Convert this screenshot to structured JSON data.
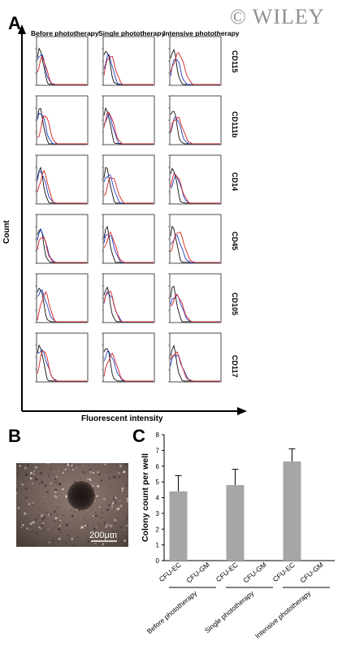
{
  "watermark": "© WILEY",
  "panels": {
    "a": "A",
    "b": "B",
    "c": "C"
  },
  "colors": {
    "red": "#d62020",
    "blue": "#1f3fbf",
    "black": "#111111",
    "bar": "#a6a6a6"
  },
  "micrograph": {
    "scale_bar": "200μm"
  },
  "chart_data": [
    {
      "panel": "A",
      "type": "histogram-grid",
      "columns": [
        "Before phototherapy",
        "Single phototherapy",
        "Intensive phototherapy"
      ],
      "rows": [
        "CD115",
        "CD111b",
        "CD14",
        "CD45",
        "CD105",
        "CD117"
      ],
      "xlabel": "Fluorescent intensity",
      "ylabel": "Count"
    },
    {
      "panel": "C",
      "type": "bar",
      "ylabel": "Colony count per well",
      "ylim": [
        0,
        8
      ],
      "yticks": [
        0,
        1,
        2,
        3,
        4,
        5,
        6,
        7,
        8
      ],
      "categories": [
        "CFU-EC",
        "CFU-GM",
        "CFU-EC",
        "CFU-GM",
        "CFU-EC",
        "CFU-GM"
      ],
      "values": [
        4.4,
        0,
        4.8,
        0,
        6.3,
        0
      ],
      "errors": [
        1.0,
        0,
        1.0,
        0,
        0.8,
        0
      ],
      "groups": [
        "Before phototherapy",
        "Single phototherapy",
        "Intensive phototherapy"
      ]
    }
  ]
}
